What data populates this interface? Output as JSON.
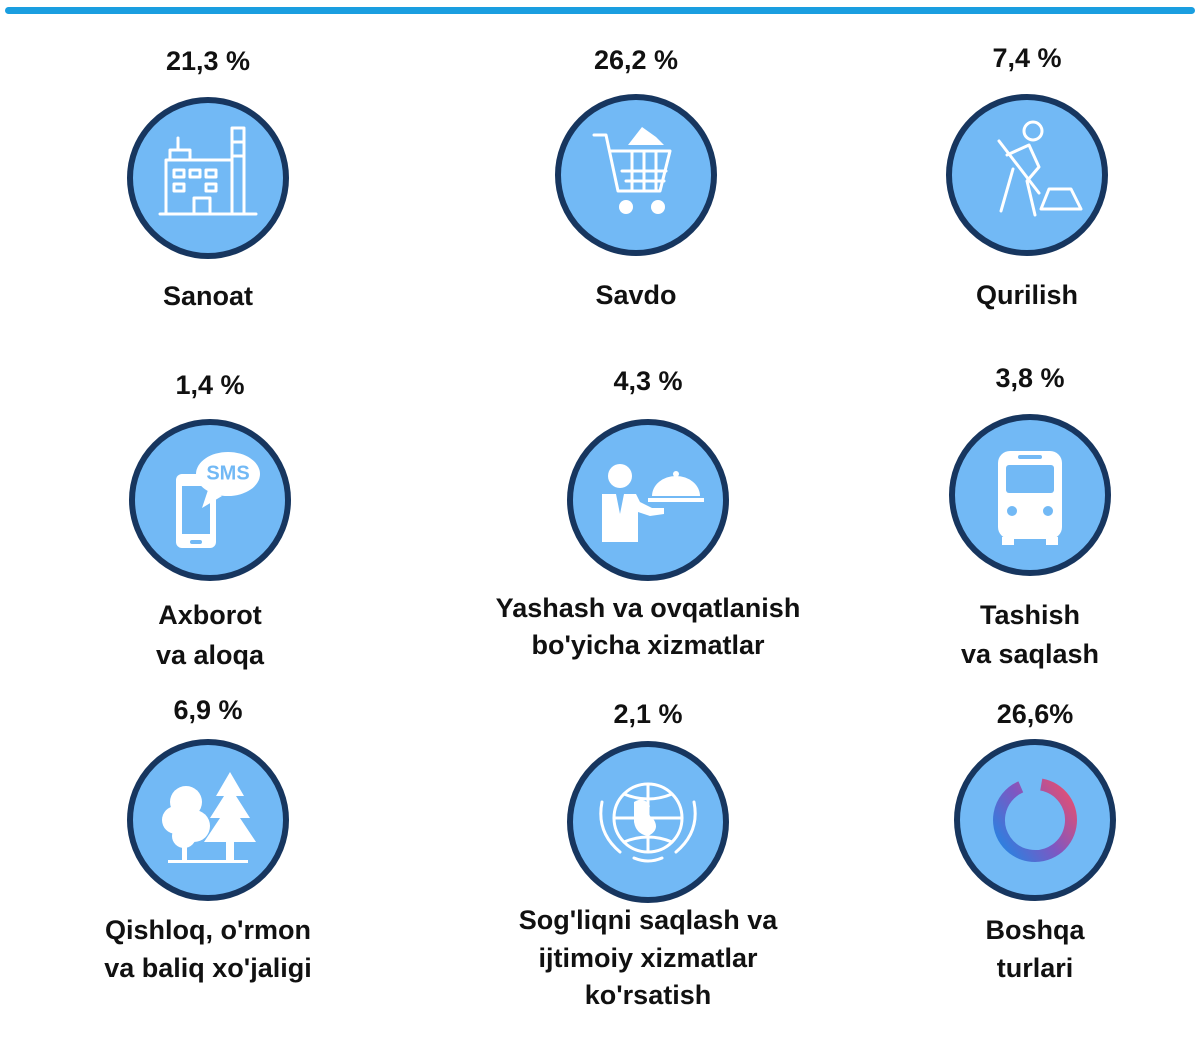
{
  "items": [
    {
      "percent": "21,3 %",
      "label": [
        "Sanoat"
      ]
    },
    {
      "percent": "26,2 %",
      "label": [
        "Savdo"
      ]
    },
    {
      "percent": "7,4 %",
      "label": [
        "Qurilish"
      ]
    },
    {
      "percent": "1,4 %",
      "label": [
        "Axborot",
        "va aloqa"
      ],
      "icon_text": "SMS"
    },
    {
      "percent": "4,3 %",
      "label": [
        "Yashash va ovqatlanish",
        "bo'yicha xizmatlar"
      ]
    },
    {
      "percent": "3,8 %",
      "label": [
        "Tashish",
        "va saqlash"
      ]
    },
    {
      "percent": "6,9 %",
      "label": [
        "Qishloq, o'rmon",
        "va baliq xo'jaligi"
      ]
    },
    {
      "percent": "2,1 %",
      "label": [
        "Sog'liqni saqlash va",
        "ijtimoiy xizmatlar",
        "ko'rsatish"
      ]
    },
    {
      "percent": "26,6%",
      "label": [
        "Boshqa",
        "turlari"
      ]
    }
  ]
}
